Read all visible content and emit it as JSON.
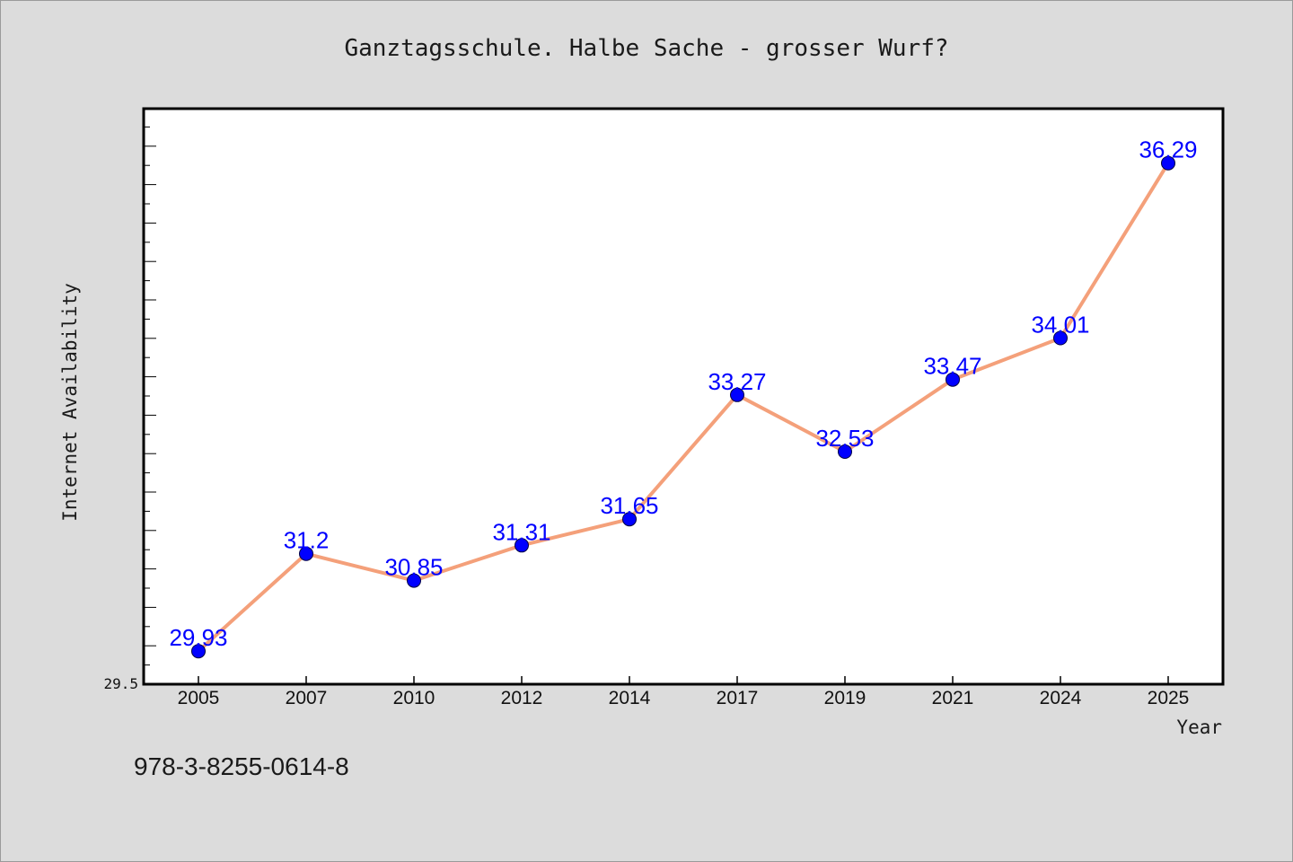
{
  "chart_data": {
    "type": "line",
    "title": "Ganztagsschule. Halbe Sache - grosser Wurf?",
    "xlabel": "Year",
    "ylabel": "Internet Availability",
    "categories": [
      "2005",
      "2007",
      "2010",
      "2012",
      "2014",
      "2017",
      "2019",
      "2021",
      "2024",
      "2025"
    ],
    "series": [
      {
        "values": [
          29.93,
          31.2,
          30.85,
          31.31,
          31.65,
          33.27,
          32.53,
          33.47,
          34.01,
          36.29
        ],
        "labels": [
          "29.93",
          "31.2",
          "30.85",
          "31.31",
          "31.65",
          "33.27",
          "32.53",
          "33.47",
          "34.01",
          "36.29"
        ]
      }
    ],
    "ylim": [
      29.5,
      37.0
    ],
    "yticks": [
      "29.5"
    ],
    "grid": false,
    "legend": "none"
  },
  "footer": {
    "text": "978-3-8255-0614-8"
  },
  "colors": {
    "background": "#dcdcdc",
    "plot_background": "#ffffff",
    "line": "#f4a07a",
    "marker": "#0000ff",
    "data_label": "#0000ff"
  }
}
